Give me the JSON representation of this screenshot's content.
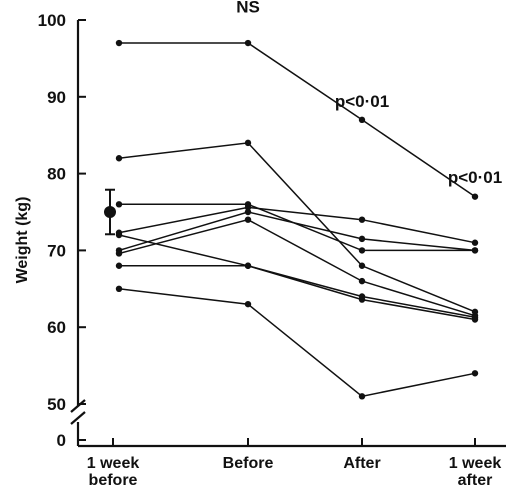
{
  "chart_data": {
    "type": "line",
    "title": "",
    "xlabel": "",
    "ylabel": "Weight (kg)",
    "categories": [
      [
        "1 week",
        "before"
      ],
      [
        "Before"
      ],
      [
        "After"
      ],
      [
        "1 week",
        "after"
      ]
    ],
    "ylim": [
      50,
      100
    ],
    "y_ticks": [
      50,
      60,
      70,
      80,
      90,
      100
    ],
    "y_break_zero_label": "0",
    "grid": false,
    "legend": "none",
    "colors": {
      "line": "#111111",
      "axis": "#111111"
    },
    "series": [
      {
        "values": [
          97,
          97,
          87,
          77
        ]
      },
      {
        "values": [
          82,
          84,
          68,
          62
        ]
      },
      {
        "values": [
          76,
          76,
          70,
          70
        ]
      },
      {
        "values": [
          72.3,
          75.6,
          74,
          71
        ]
      },
      {
        "values": [
          72,
          68,
          63.6,
          61
        ]
      },
      {
        "values": [
          70,
          75,
          71.5,
          70
        ]
      },
      {
        "values": [
          69.6,
          74,
          66,
          61.5
        ]
      },
      {
        "values": [
          68,
          68,
          64,
          61.3
        ]
      },
      {
        "values": [
          65,
          63,
          51,
          54
        ]
      }
    ],
    "mean_point": {
      "value": 75,
      "error": 2.9
    },
    "annotations": [
      {
        "text": "NS",
        "category_index": 1,
        "y": 101
      },
      {
        "text": "p<0·01",
        "category_index": 2,
        "y": 88.7
      },
      {
        "text": "p<0·01",
        "category_index": 3,
        "y": 78.8
      }
    ]
  }
}
